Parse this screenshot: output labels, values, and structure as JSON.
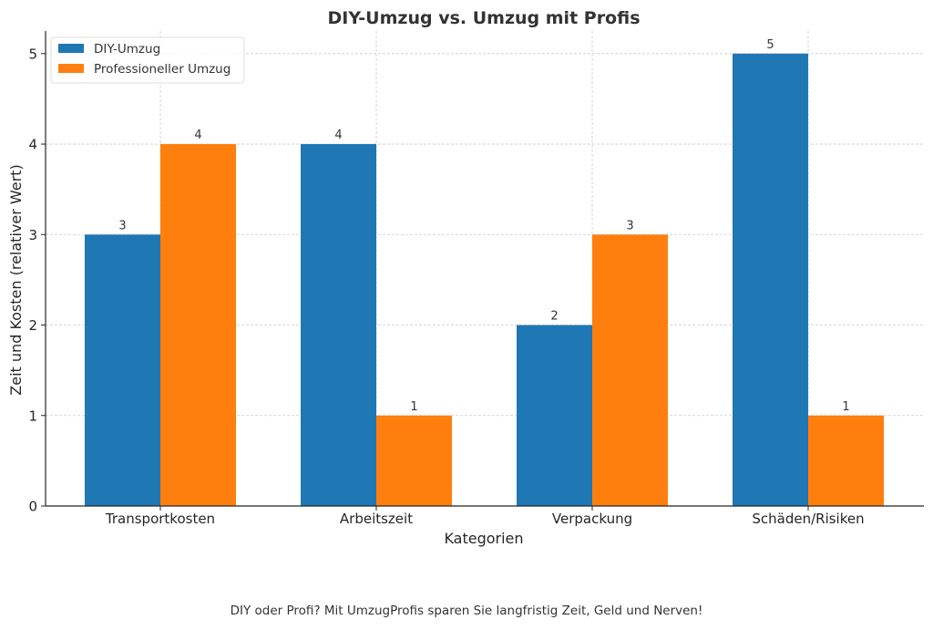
{
  "chart_data": {
    "type": "bar",
    "title": "DIY-Umzug vs. Umzug mit Profis",
    "xlabel": "Kategorien",
    "ylabel": "Zeit und Kosten (relativer Wert)",
    "categories": [
      "Transportkosten",
      "Arbeitszeit",
      "Verpackung",
      "Schäden/Risiken"
    ],
    "series": [
      {
        "name": "DIY-Umzug",
        "color": "#1f77b4",
        "values": [
          3,
          4,
          2,
          5
        ]
      },
      {
        "name": "Professioneller Umzug",
        "color": "#ff7f0e",
        "values": [
          4,
          1,
          3,
          1
        ]
      }
    ],
    "ylim": [
      0,
      5.25
    ],
    "yticks": [
      0,
      1,
      2,
      3,
      4,
      5
    ],
    "grid": true,
    "legend_position": "top-left",
    "data_labels": true
  },
  "caption": "DIY oder Profi? Mit UmzugProfis sparen Sie langfristig Zeit, Geld und Nerven!"
}
